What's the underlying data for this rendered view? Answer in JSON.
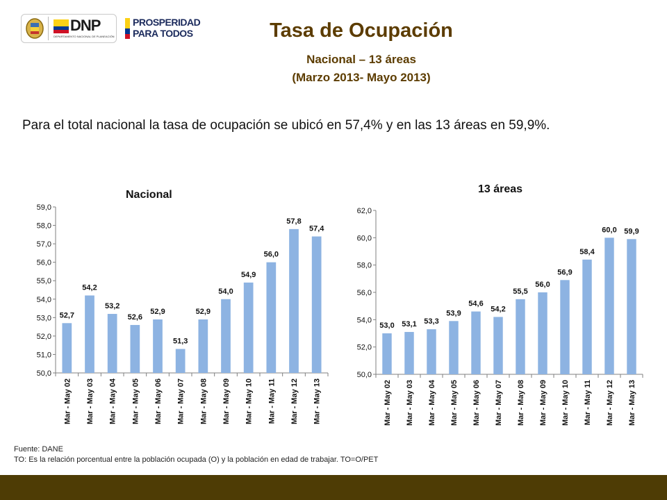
{
  "header": {
    "logos": [
      {
        "text": "DNP",
        "subtext": "DEPARTAMENTO NACIONAL DE PLANEACIÓN"
      },
      {
        "text_line1": "PROSPERIDAD",
        "text_line2": "PARA TODOS"
      }
    ],
    "title": "Tasa de Ocupación",
    "subtitle_line1": "Nacional – 13 áreas",
    "subtitle_line2": "(Marzo 2013- Mayo 2013)"
  },
  "summary": "Para el total nacional la tasa de ocupación se ubicó en 57,4% y en las 13 áreas en 59,9%.",
  "colors": {
    "bar": "#8db3e2",
    "title": "#5c3c00",
    "footer_bar": "#4e3c05"
  },
  "chart_data": [
    {
      "type": "bar",
      "title": "Nacional",
      "categories": [
        "Mar - May 02",
        "Mar - May 03",
        "Mar - May 04",
        "Mar - May 05",
        "Mar - May 06",
        "Mar - May 07",
        "Mar - May 08",
        "Mar - May 09",
        "Mar - May 10",
        "Mar - May 11",
        "Mar - May 12",
        "Mar - May 13"
      ],
      "values": [
        52.7,
        54.2,
        53.2,
        52.6,
        52.9,
        51.3,
        52.9,
        54.0,
        54.9,
        56.0,
        57.8,
        57.4
      ],
      "data_labels": [
        "52,7",
        "54,2",
        "53,2",
        "52,6",
        "52,9",
        "51,3",
        "52,9",
        "54,0",
        "54,9",
        "56,0",
        "57,8",
        "57,4"
      ],
      "ylim": [
        50,
        59
      ],
      "yticks": [
        "50,0",
        "51,0",
        "52,0",
        "53,0",
        "54,0",
        "55,0",
        "56,0",
        "57,0",
        "58,0",
        "59,0"
      ],
      "grid": false
    },
    {
      "type": "bar",
      "title": "13 áreas",
      "categories": [
        "Mar - May 02",
        "Mar - May 03",
        "Mar - May 04",
        "Mar - May 05",
        "Mar - May 06",
        "Mar - May 07",
        "Mar - May 08",
        "Mar - May 09",
        "Mar - May 10",
        "Mar - May 11",
        "Mar - May 12",
        "Mar - May 13"
      ],
      "values": [
        53.0,
        53.1,
        53.3,
        53.9,
        54.6,
        54.2,
        55.5,
        56.0,
        56.9,
        58.4,
        60.0,
        59.9
      ],
      "data_labels": [
        "53,0",
        "53,1",
        "53,3",
        "53,9",
        "54,6",
        "54,2",
        "55,5",
        "56,0",
        "56,9",
        "58,4",
        "60,0",
        "59,9"
      ],
      "ylim": [
        50,
        62
      ],
      "yticks": [
        "50,0",
        "52,0",
        "54,0",
        "56,0",
        "58,0",
        "60,0",
        "62,0"
      ],
      "grid": false
    }
  ],
  "footer": {
    "source": "Fuente: DANE",
    "note": "TO: Es la relación porcentual entre la población ocupada (O) y la población  en edad de trabajar. TO=O/PET"
  }
}
